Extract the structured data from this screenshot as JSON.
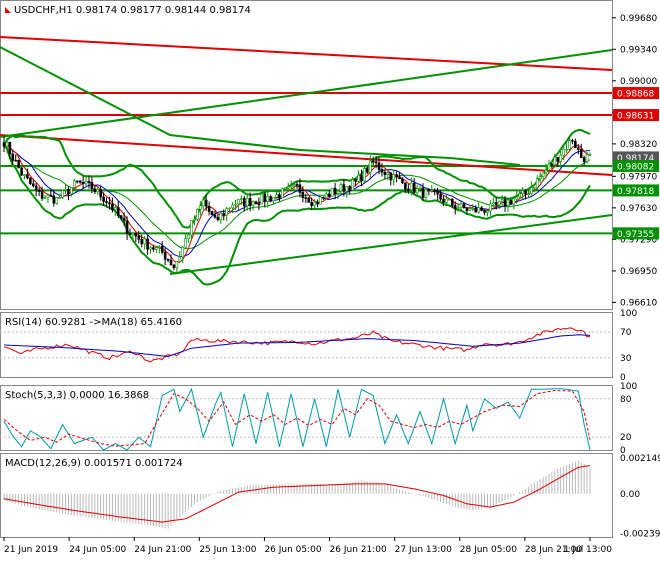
{
  "chart_data": [
    {
      "type": "candlestick",
      "title": "USDCHF,H1  0.98174  0.98177  0.98144  0.98174",
      "ylim": [
        0.9655,
        0.9985
      ],
      "y_ticks": [
        "0.99680",
        "0.99340",
        "0.99000",
        "0.98660",
        "0.98320",
        "0.97970",
        "0.97630",
        "0.97290",
        "0.96950",
        "0.96610"
      ],
      "highlight_labels": [
        {
          "text": "0.98868",
          "value": 0.98868,
          "color": "#e00000"
        },
        {
          "text": "0.98631",
          "value": 0.98631,
          "color": "#e00000"
        },
        {
          "text": "0.98174",
          "value": 0.98174,
          "color": "#555555"
        },
        {
          "text": "0.98082",
          "value": 0.98082,
          "color": "#009000"
        },
        {
          "text": "0.97818",
          "value": 0.97818,
          "color": "#009000"
        },
        {
          "text": "0.97355",
          "value": 0.97355,
          "color": "#009000"
        }
      ],
      "levels": [
        {
          "value": 0.98868,
          "color": "#e00000"
        },
        {
          "value": 0.98631,
          "color": "#e00000"
        },
        {
          "value": 0.98082,
          "color": "#009000"
        },
        {
          "value": 0.97818,
          "color": "#009000"
        },
        {
          "value": 0.97355,
          "color": "#009000"
        }
      ],
      "ohlc_anchors": [
        [
          0,
          0.9835
        ],
        [
          6,
          0.98
        ],
        [
          12,
          0.9777
        ],
        [
          18,
          0.9772
        ],
        [
          25,
          0.979
        ],
        [
          30,
          0.9785
        ],
        [
          36,
          0.9768
        ],
        [
          42,
          0.974
        ],
        [
          48,
          0.9725
        ],
        [
          54,
          0.9715
        ],
        [
          58,
          0.97
        ],
        [
          60,
          0.9712
        ],
        [
          64,
          0.9745
        ],
        [
          68,
          0.977
        ],
        [
          72,
          0.9748
        ],
        [
          78,
          0.9768
        ],
        [
          84,
          0.977
        ],
        [
          92,
          0.9775
        ],
        [
          100,
          0.9785
        ],
        [
          106,
          0.9768
        ],
        [
          112,
          0.978
        ],
        [
          120,
          0.979
        ],
        [
          126,
          0.9812
        ],
        [
          130,
          0.9802
        ],
        [
          136,
          0.979
        ],
        [
          142,
          0.978
        ],
        [
          148,
          0.9775
        ],
        [
          154,
          0.9765
        ],
        [
          160,
          0.976
        ],
        [
          166,
          0.9762
        ],
        [
          172,
          0.977
        ],
        [
          178,
          0.9778
        ],
        [
          184,
          0.98
        ],
        [
          190,
          0.9822
        ],
        [
          194,
          0.9837
        ],
        [
          197,
          0.9818
        ],
        [
          200,
          0.9817
        ]
      ]
    },
    {
      "type": "line",
      "title": "RSI(14) 60.9281  ->MA(18) 65.4160",
      "ylim": [
        0,
        100
      ],
      "y_ticks": [
        "100",
        "70",
        "30",
        "0"
      ],
      "series": [
        {
          "color": "#e00000",
          "anchors": [
            [
              0,
              48
            ],
            [
              6,
              36
            ],
            [
              10,
              42
            ],
            [
              16,
              47
            ],
            [
              22,
              51
            ],
            [
              30,
              38
            ],
            [
              36,
              30
            ],
            [
              44,
              40
            ],
            [
              50,
              24
            ],
            [
              56,
              32
            ],
            [
              60,
              36
            ],
            [
              64,
              58
            ],
            [
              70,
              57
            ],
            [
              80,
              55
            ],
            [
              90,
              53
            ],
            [
              100,
              56
            ],
            [
              106,
              52
            ],
            [
              114,
              58
            ],
            [
              120,
              61
            ],
            [
              126,
              69
            ],
            [
              132,
              56
            ],
            [
              140,
              51
            ],
            [
              146,
              47
            ],
            [
              152,
              44
            ],
            [
              158,
              42
            ],
            [
              164,
              53
            ],
            [
              170,
              50
            ],
            [
              176,
              55
            ],
            [
              182,
              66
            ],
            [
              188,
              74
            ],
            [
              194,
              78
            ],
            [
              198,
              70
            ],
            [
              200,
              61
            ]
          ]
        },
        {
          "color": "#0000c0",
          "anchors": [
            [
              0,
              50
            ],
            [
              20,
              46
            ],
            [
              40,
              40
            ],
            [
              56,
              32
            ],
            [
              64,
              45
            ],
            [
              80,
              53
            ],
            [
              100,
              54
            ],
            [
              124,
              60
            ],
            [
              140,
              57
            ],
            [
              160,
              48
            ],
            [
              176,
              53
            ],
            [
              190,
              64
            ],
            [
              196,
              66
            ],
            [
              200,
              65
            ]
          ]
        }
      ]
    },
    {
      "type": "line",
      "title": "Stoch(5,3,3) 0.0000 16.3868",
      "ylim": [
        0,
        100
      ],
      "y_ticks": [
        "100",
        "80",
        "20",
        "0"
      ],
      "series": [
        {
          "color": "#009aa8",
          "style": "solid",
          "anchors": [
            [
              0,
              45
            ],
            [
              3,
              22
            ],
            [
              6,
              5
            ],
            [
              9,
              30
            ],
            [
              12,
              22
            ],
            [
              16,
              2
            ],
            [
              20,
              40
            ],
            [
              24,
              10
            ],
            [
              30,
              20
            ],
            [
              34,
              0
            ],
            [
              38,
              10
            ],
            [
              42,
              0
            ],
            [
              46,
              20
            ],
            [
              50,
              5
            ],
            [
              54,
              85
            ],
            [
              58,
              95
            ],
            [
              60,
              60
            ],
            [
              64,
              95
            ],
            [
              68,
              20
            ],
            [
              72,
              70
            ],
            [
              74,
              90
            ],
            [
              78,
              5
            ],
            [
              82,
              88
            ],
            [
              86,
              10
            ],
            [
              90,
              90
            ],
            [
              94,
              5
            ],
            [
              98,
              88
            ],
            [
              102,
              5
            ],
            [
              106,
              80
            ],
            [
              110,
              5
            ],
            [
              114,
              95
            ],
            [
              118,
              20
            ],
            [
              122,
              95
            ],
            [
              126,
              85
            ],
            [
              130,
              10
            ],
            [
              134,
              55
            ],
            [
              138,
              10
            ],
            [
              142,
              60
            ],
            [
              146,
              10
            ],
            [
              150,
              80
            ],
            [
              154,
              10
            ],
            [
              158,
              70
            ],
            [
              160,
              30
            ],
            [
              164,
              80
            ],
            [
              168,
              65
            ],
            [
              172,
              75
            ],
            [
              176,
              50
            ],
            [
              180,
              95
            ],
            [
              184,
              95
            ],
            [
              190,
              96
            ],
            [
              196,
              92
            ],
            [
              198,
              40
            ],
            [
              200,
              0
            ]
          ]
        },
        {
          "color": "#e00000",
          "style": "dashed",
          "anchors": [
            [
              0,
              48
            ],
            [
              5,
              28
            ],
            [
              9,
              15
            ],
            [
              14,
              20
            ],
            [
              18,
              12
            ],
            [
              22,
              25
            ],
            [
              27,
              18
            ],
            [
              33,
              10
            ],
            [
              38,
              6
            ],
            [
              43,
              8
            ],
            [
              48,
              10
            ],
            [
              53,
              50
            ],
            [
              58,
              88
            ],
            [
              62,
              80
            ],
            [
              66,
              65
            ],
            [
              70,
              45
            ],
            [
              75,
              75
            ],
            [
              79,
              40
            ],
            [
              84,
              55
            ],
            [
              88,
              45
            ],
            [
              92,
              55
            ],
            [
              96,
              40
            ],
            [
              100,
              50
            ],
            [
              104,
              38
            ],
            [
              108,
              48
            ],
            [
              112,
              40
            ],
            [
              116,
              65
            ],
            [
              120,
              55
            ],
            [
              124,
              80
            ],
            [
              128,
              70
            ],
            [
              132,
              45
            ],
            [
              136,
              40
            ],
            [
              140,
              35
            ],
            [
              144,
              40
            ],
            [
              148,
              35
            ],
            [
              152,
              45
            ],
            [
              156,
              40
            ],
            [
              160,
              50
            ],
            [
              164,
              60
            ],
            [
              170,
              70
            ],
            [
              176,
              68
            ],
            [
              182,
              88
            ],
            [
              188,
              93
            ],
            [
              194,
              92
            ],
            [
              198,
              60
            ],
            [
              200,
              16
            ]
          ]
        }
      ]
    },
    {
      "type": "bar",
      "title": "MACD(12,26,9) 0.001571 0.001724",
      "ylim": [
        -0.0026,
        0.0024
      ],
      "y_ticks": [
        "0.002149",
        "0.00",
        "-0.002399"
      ],
      "histogram_anchors": [
        [
          0,
          -0.0004
        ],
        [
          8,
          -0.0008
        ],
        [
          20,
          -0.0012
        ],
        [
          36,
          -0.0016
        ],
        [
          50,
          -0.0019
        ],
        [
          56,
          -0.0021
        ],
        [
          60,
          -0.0014
        ],
        [
          66,
          -0.0005
        ],
        [
          74,
          0.0002
        ],
        [
          84,
          0.0005
        ],
        [
          100,
          0.0006
        ],
        [
          114,
          0.0006
        ],
        [
          122,
          0.0008
        ],
        [
          128,
          0.0007
        ],
        [
          136,
          0.0002
        ],
        [
          146,
          -0.0003
        ],
        [
          154,
          -0.0008
        ],
        [
          160,
          -0.001
        ],
        [
          166,
          -0.0008
        ],
        [
          172,
          -0.0003
        ],
        [
          178,
          0.0003
        ],
        [
          184,
          0.001
        ],
        [
          190,
          0.0016
        ],
        [
          196,
          0.002
        ],
        [
          200,
          0.0016
        ]
      ],
      "signal_anchors": [
        [
          0,
          -0.0003
        ],
        [
          10,
          -0.0006
        ],
        [
          24,
          -0.001
        ],
        [
          40,
          -0.0014
        ],
        [
          54,
          -0.0017
        ],
        [
          62,
          -0.0015
        ],
        [
          70,
          -0.0008
        ],
        [
          80,
          0.0001
        ],
        [
          92,
          0.0004
        ],
        [
          106,
          0.0005
        ],
        [
          120,
          0.0006
        ],
        [
          130,
          0.0006
        ],
        [
          140,
          0.0003
        ],
        [
          150,
          -0.0001
        ],
        [
          158,
          -0.0006
        ],
        [
          166,
          -0.0008
        ],
        [
          174,
          -0.0005
        ],
        [
          182,
          0.0002
        ],
        [
          190,
          0.001
        ],
        [
          196,
          0.0016
        ],
        [
          200,
          0.0017
        ]
      ]
    }
  ],
  "x_ticks": [
    "21 Jun 2019",
    "24 Jun 05:00",
    "24 Jun 21:00",
    "25 Jun 13:00",
    "26 Jun 05:00",
    "26 Jun 21:00",
    "27 Jun 13:00",
    "28 Jun 05:00",
    "28 Jun 21:00",
    "1 Jul 13:00"
  ],
  "colors": {
    "bull": "#009000",
    "bear": "#e00000",
    "ma_fast": "#e00000",
    "ma_slow": "#0000c0",
    "bands": "#009000",
    "trend_red": "#e00000",
    "trend_green": "#009000",
    "grid": "#d8d8d8"
  }
}
